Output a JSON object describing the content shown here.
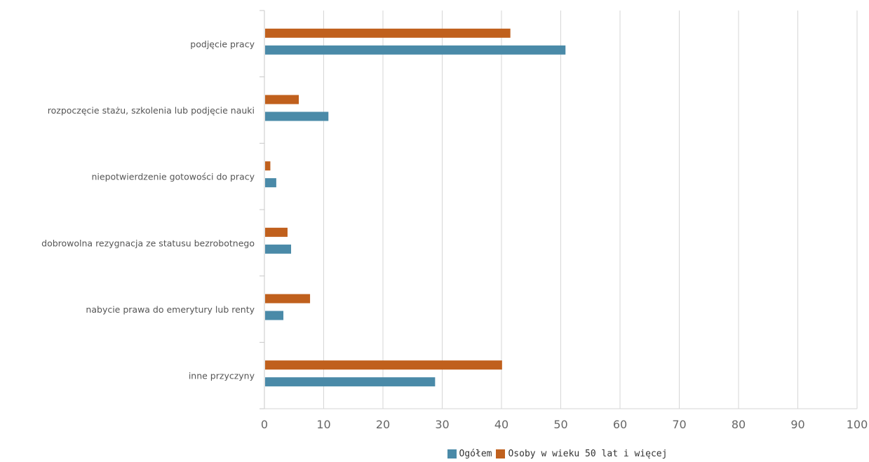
{
  "chart_data": {
    "type": "bar",
    "orientation": "horizontal",
    "categories": [
      "podjęcie pracy",
      "rozpoczęcie stażu, szkolenia lub podjęcie nauki",
      "niepotwierdzenie gotowości do pracy",
      "dobrowolna rezygnacja ze statusu bezrobotnego",
      "nabycie prawa do emerytury lub renty",
      "inne przyczyny"
    ],
    "series": [
      {
        "name": "Osoby w wieku 50 lat i więcej",
        "color": "#c0601d",
        "values": [
          41.5,
          5.8,
          1.0,
          3.9,
          7.7,
          40.1
        ]
      },
      {
        "name": "Ogółem",
        "color": "#4a8aa8",
        "values": [
          50.8,
          10.8,
          2.0,
          4.5,
          3.2,
          28.8
        ]
      }
    ],
    "xlim": [
      0,
      100
    ],
    "xticks": [
      0,
      10,
      20,
      30,
      40,
      50,
      60,
      70,
      80,
      90,
      100
    ],
    "grid": true,
    "legend": {
      "placement": "bottom",
      "entries": [
        {
          "label": "Ogółem",
          "color": "#4a8aa8"
        },
        {
          "label": "Osoby w wieku 50 lat i więcej",
          "color": "#c0601d"
        }
      ]
    }
  }
}
